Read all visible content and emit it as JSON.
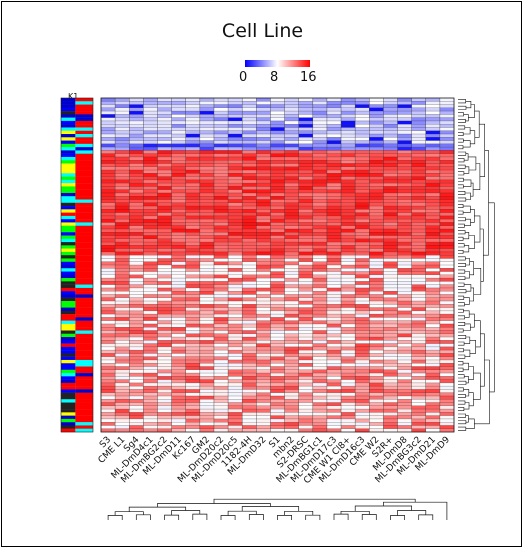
{
  "chart_data": {
    "type": "heatmap",
    "title": "Cell Line",
    "color_scale": {
      "low_color": "#0000ff",
      "mid_color": "#ffffff",
      "high_color": "#ff0000",
      "range": [
        0,
        16
      ],
      "ticks": [
        "0",
        "8",
        "16"
      ]
    },
    "row_sidebar_label": "K1",
    "columns": [
      "S3",
      "CME L1",
      "Sg4",
      "ML-DmD4c1",
      "ML-DmBG2c2",
      "ML-DmD11",
      "Kc167",
      "GM2",
      "ML-DmD20c2",
      "ML-DmD20c5",
      "1182-4H",
      "ML-DmD32",
      "S1",
      "mbn2",
      "S2-DRSC",
      "ML-DmBG1c1",
      "ML-DmD17c3",
      "CME W1 Cl8+",
      "ML-DmD16c3",
      "CME W2",
      "S2R+",
      "ML-DmD8",
      "ML-DmBG3c2",
      "ML-DmD21",
      "ML-DmD9"
    ],
    "row_blocks": [
      {
        "rows": 14,
        "level": "low"
      },
      {
        "rows": 2,
        "level": "blue"
      },
      {
        "rows": 32,
        "level": "high"
      },
      {
        "rows": 12,
        "level": "mixed-high"
      },
      {
        "rows": 42,
        "level": "mixed"
      }
    ],
    "dendrograms": {
      "rows": "right",
      "columns": "bottom"
    },
    "grid": true
  }
}
